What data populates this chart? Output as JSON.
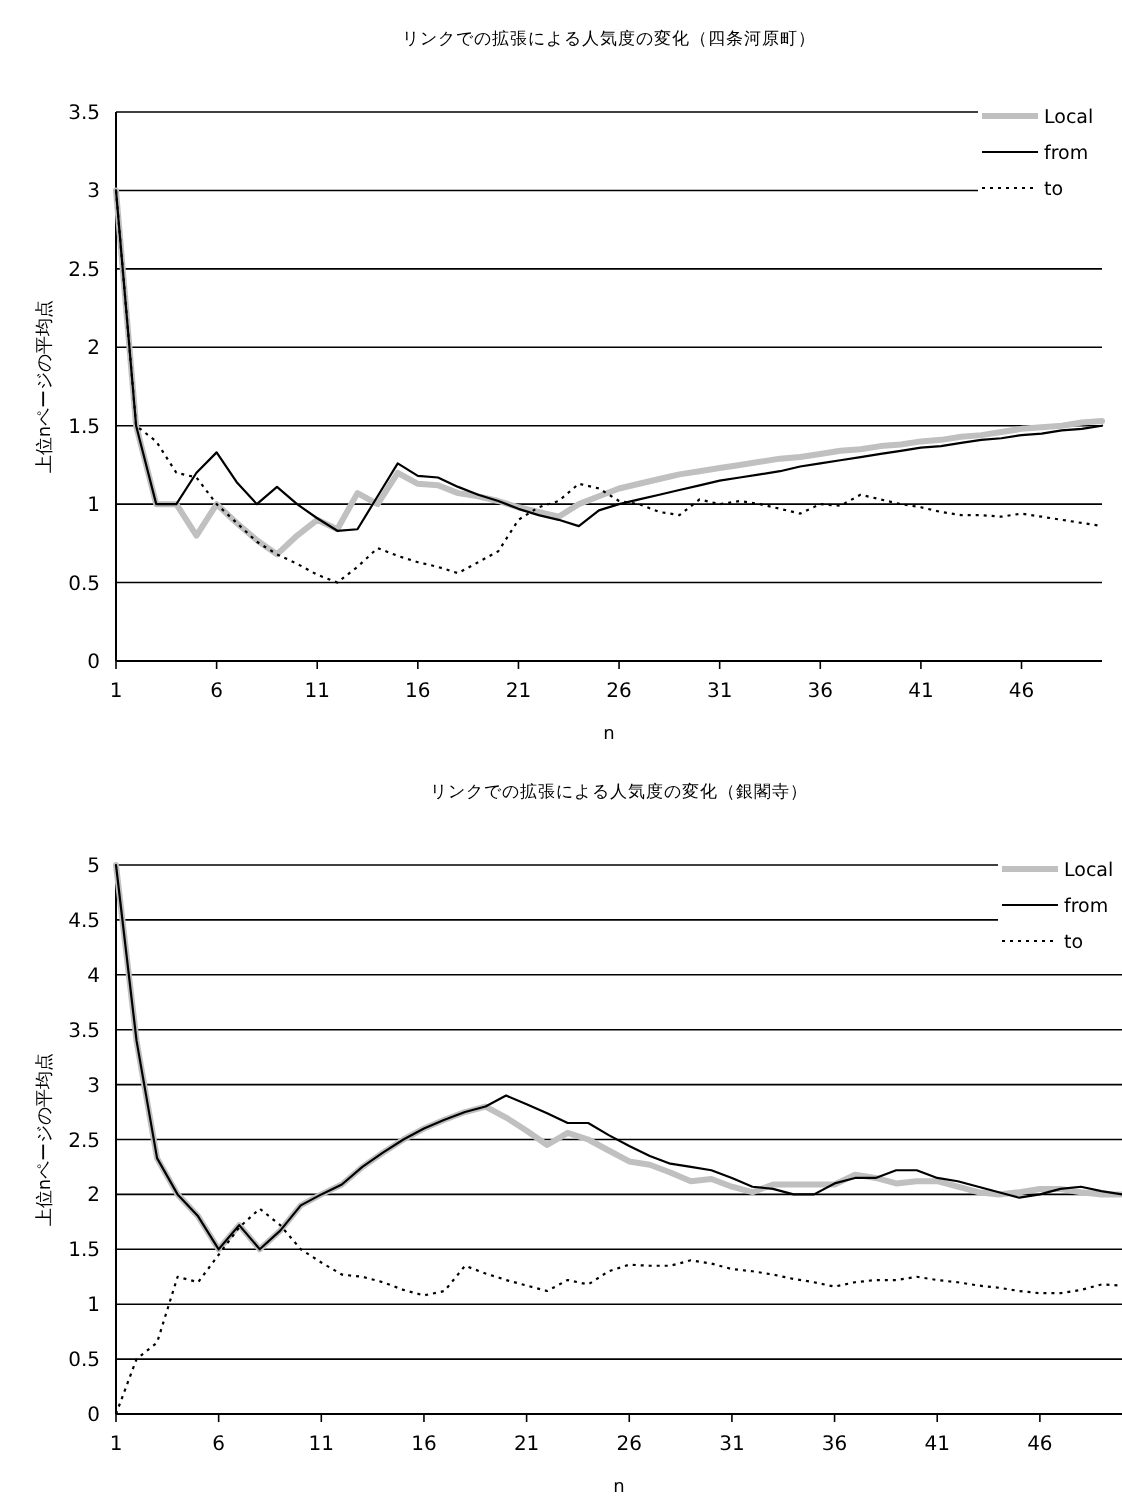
{
  "chart_data": [
    {
      "type": "line",
      "title": "リンクでの拡張による人気度の変化（四条河原町）",
      "xlabel": "n",
      "ylabel": "上位nページの平均点",
      "x": [
        1,
        2,
        3,
        4,
        5,
        6,
        7,
        8,
        9,
        10,
        11,
        12,
        13,
        14,
        15,
        16,
        17,
        18,
        19,
        20,
        21,
        22,
        23,
        24,
        25,
        26,
        27,
        28,
        29,
        30,
        31,
        32,
        33,
        34,
        35,
        36,
        37,
        38,
        39,
        40,
        41,
        42,
        43,
        44,
        45,
        46,
        47,
        48,
        49,
        50
      ],
      "xlim": [
        1,
        50
      ],
      "xticks": [
        1,
        6,
        11,
        16,
        21,
        26,
        31,
        36,
        41,
        46
      ],
      "ylim": [
        0,
        3.5
      ],
      "yticks": [
        0,
        0.5,
        1,
        1.5,
        2,
        2.5,
        3,
        3.5
      ],
      "grid": "y",
      "legend": "top right",
      "marker": "none",
      "series": [
        {
          "name": "Local",
          "color": "#c0c0c0",
          "line_style": "solid",
          "values": [
            3,
            1.5,
            1.0,
            1.0,
            0.8,
            1.0,
            0.88,
            0.77,
            0.68,
            0.8,
            0.9,
            0.84,
            1.07,
            1.0,
            1.2,
            1.13,
            1.12,
            1.07,
            1.05,
            1.02,
            0.98,
            0.95,
            0.92,
            1.0,
            1.05,
            1.1,
            1.13,
            1.16,
            1.19,
            1.21,
            1.23,
            1.25,
            1.27,
            1.29,
            1.3,
            1.32,
            1.34,
            1.35,
            1.37,
            1.38,
            1.4,
            1.41,
            1.43,
            1.44,
            1.46,
            1.48,
            1.49,
            1.5,
            1.52,
            1.53
          ]
        },
        {
          "name": "from",
          "color": "#000000",
          "line_style": "solid",
          "values": [
            3,
            1.5,
            1.0,
            1.0,
            1.2,
            1.33,
            1.14,
            1.0,
            1.11,
            1.0,
            0.91,
            0.83,
            0.84,
            1.05,
            1.26,
            1.18,
            1.17,
            1.11,
            1.06,
            1.02,
            0.97,
            0.93,
            0.9,
            0.86,
            0.96,
            1.0,
            1.03,
            1.06,
            1.09,
            1.12,
            1.15,
            1.17,
            1.19,
            1.21,
            1.24,
            1.26,
            1.28,
            1.3,
            1.32,
            1.34,
            1.36,
            1.37,
            1.39,
            1.41,
            1.42,
            1.44,
            1.45,
            1.47,
            1.48,
            1.5
          ]
        },
        {
          "name": "to",
          "color": "#000000",
          "line_style": "dotted",
          "values": [
            3,
            1.5,
            1.4,
            1.2,
            1.17,
            1.0,
            0.88,
            0.76,
            0.68,
            0.62,
            0.55,
            0.5,
            0.6,
            0.72,
            0.67,
            0.63,
            0.6,
            0.56,
            0.63,
            0.7,
            0.9,
            0.98,
            1.02,
            1.13,
            1.1,
            1.02,
            1.0,
            0.95,
            0.93,
            1.03,
            1.0,
            1.02,
            1.0,
            0.97,
            0.94,
            1.0,
            0.99,
            1.06,
            1.03,
            1.0,
            0.98,
            0.95,
            0.93,
            0.93,
            0.92,
            0.94,
            0.92,
            0.9,
            0.88,
            0.86
          ]
        }
      ]
    },
    {
      "type": "line",
      "title": "リンクでの拡張による人気度の変化（銀閣寺）",
      "xlabel": "n",
      "ylabel": "上位nページの平均点",
      "x": [
        1,
        2,
        3,
        4,
        5,
        6,
        7,
        8,
        9,
        10,
        11,
        12,
        13,
        14,
        15,
        16,
        17,
        18,
        19,
        20,
        21,
        22,
        23,
        24,
        25,
        26,
        27,
        28,
        29,
        30,
        31,
        32,
        33,
        34,
        35,
        36,
        37,
        38,
        39,
        40,
        41,
        42,
        43,
        44,
        45,
        46,
        47,
        48,
        49,
        50
      ],
      "xlim": [
        1,
        50
      ],
      "xticks": [
        1,
        6,
        11,
        16,
        21,
        26,
        31,
        36,
        41,
        46
      ],
      "ylim": [
        0,
        5
      ],
      "yticks": [
        0,
        0.5,
        1,
        1.5,
        2,
        2.5,
        3,
        3.5,
        4,
        4.5,
        5
      ],
      "grid": "y",
      "legend": "top right",
      "marker": "none",
      "series": [
        {
          "name": "Local",
          "color": "#c0c0c0",
          "line_style": "solid",
          "values": [
            5,
            3.4,
            2.33,
            2.0,
            1.8,
            1.5,
            1.72,
            1.5,
            1.67,
            1.9,
            2.0,
            2.09,
            2.25,
            2.38,
            2.5,
            2.6,
            2.68,
            2.75,
            2.8,
            2.7,
            2.58,
            2.45,
            2.56,
            2.5,
            2.4,
            2.3,
            2.27,
            2.2,
            2.12,
            2.14,
            2.07,
            2.02,
            2.09,
            2.09,
            2.09,
            2.09,
            2.18,
            2.15,
            2.1,
            2.12,
            2.12,
            2.07,
            2.02,
            2.0,
            2.02,
            2.05,
            2.05,
            2.02,
            2.0,
            2.0
          ]
        },
        {
          "name": "from",
          "color": "#000000",
          "line_style": "solid",
          "values": [
            5,
            3.4,
            2.33,
            2.0,
            1.8,
            1.5,
            1.72,
            1.5,
            1.67,
            1.9,
            2.0,
            2.09,
            2.25,
            2.38,
            2.5,
            2.6,
            2.68,
            2.75,
            2.8,
            2.9,
            2.82,
            2.74,
            2.65,
            2.65,
            2.54,
            2.44,
            2.35,
            2.28,
            2.25,
            2.22,
            2.15,
            2.07,
            2.05,
            2.0,
            2.0,
            2.1,
            2.15,
            2.15,
            2.22,
            2.22,
            2.15,
            2.12,
            2.07,
            2.02,
            1.97,
            2.0,
            2.05,
            2.07,
            2.03,
            2.0
          ]
        },
        {
          "name": "to",
          "color": "#000000",
          "line_style": "dotted",
          "values": [
            0,
            0.5,
            0.65,
            1.25,
            1.2,
            1.45,
            1.7,
            1.87,
            1.72,
            1.5,
            1.38,
            1.27,
            1.25,
            1.2,
            1.13,
            1.08,
            1.12,
            1.35,
            1.28,
            1.22,
            1.17,
            1.12,
            1.22,
            1.18,
            1.3,
            1.36,
            1.35,
            1.35,
            1.4,
            1.37,
            1.32,
            1.3,
            1.27,
            1.23,
            1.2,
            1.16,
            1.2,
            1.22,
            1.22,
            1.25,
            1.22,
            1.2,
            1.17,
            1.15,
            1.12,
            1.1,
            1.1,
            1.13,
            1.18,
            1.17
          ]
        }
      ]
    }
  ]
}
